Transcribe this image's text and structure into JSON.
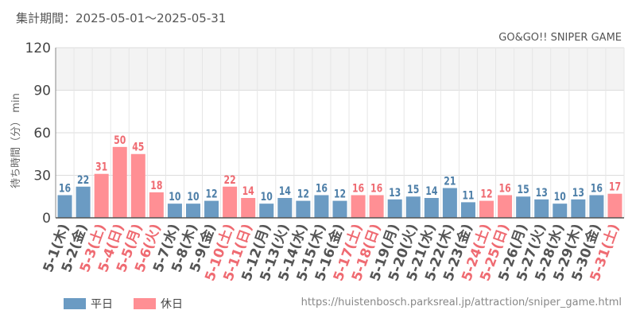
{
  "header": {
    "period": "集計期間：2025-05-01～2025-05-31"
  },
  "footer": {
    "source_url": "https://huistenbosch.parksreal.jp/attraction/sniper_game.html"
  },
  "colors": {
    "weekday": "#6b9bc3",
    "holiday": "#ff8f94",
    "weekday_label": "#4e7fa8",
    "holiday_label": "#ef6b72",
    "tick_label": "#555555"
  },
  "chart_data": {
    "type": "bar",
    "title": "GO&GO!! SNIPER GAME",
    "ylabel": "待ち時間（分） min",
    "ylim": [
      0,
      120
    ],
    "yticks": [
      0,
      30,
      60,
      90,
      120
    ],
    "grid": true,
    "legend_position": "bottom-left",
    "legend": [
      {
        "key": "weekday",
        "label": "平日"
      },
      {
        "key": "holiday",
        "label": "休日"
      }
    ],
    "categories": [
      "5-1(木)",
      "5-2(金)",
      "5-3(土)",
      "5-4(日)",
      "5-5(月)",
      "5-6(火)",
      "5-7(水)",
      "5-8(木)",
      "5-9(金)",
      "5-10(土)",
      "5-11(日)",
      "5-12(月)",
      "5-13(火)",
      "5-14(水)",
      "5-15(木)",
      "5-16(金)",
      "5-17(土)",
      "5-18(日)",
      "5-19(月)",
      "5-20(火)",
      "5-21(水)",
      "5-22(木)",
      "5-23(金)",
      "5-24(土)",
      "5-25(日)",
      "5-26(月)",
      "5-27(火)",
      "5-28(水)",
      "5-29(木)",
      "5-30(金)",
      "5-31(土)"
    ],
    "values": [
      16,
      22,
      31,
      50,
      45,
      18,
      10,
      10,
      12,
      22,
      14,
      10,
      14,
      12,
      16,
      12,
      16,
      16,
      13,
      15,
      14,
      21,
      11,
      12,
      16,
      15,
      13,
      10,
      13,
      16,
      17
    ],
    "day_type": [
      "weekday",
      "weekday",
      "holiday",
      "holiday",
      "holiday",
      "holiday",
      "weekday",
      "weekday",
      "weekday",
      "holiday",
      "holiday",
      "weekday",
      "weekday",
      "weekday",
      "weekday",
      "weekday",
      "holiday",
      "holiday",
      "weekday",
      "weekday",
      "weekday",
      "weekday",
      "weekday",
      "holiday",
      "holiday",
      "weekday",
      "weekday",
      "weekday",
      "weekday",
      "weekday",
      "holiday"
    ]
  }
}
